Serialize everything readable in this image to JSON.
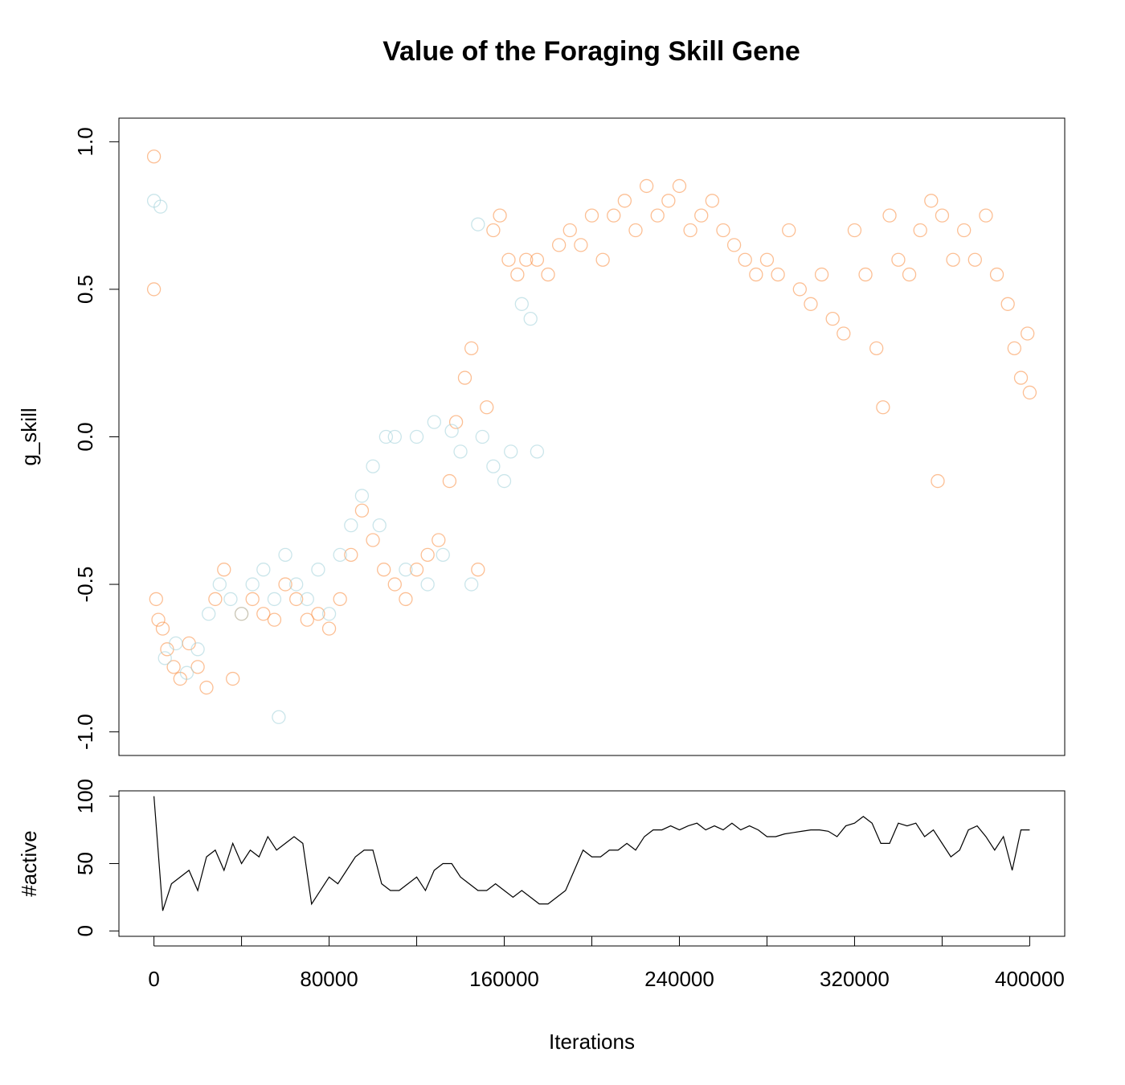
{
  "chart_data": [
    {
      "type": "scatter",
      "title": "Value of the Foraging Skill Gene",
      "ylabel": "g_skill",
      "xlim": [
        -16000,
        416000
      ],
      "ylim": [
        -1.08,
        1.08
      ],
      "yticks": [
        {
          "value": -1,
          "label": "-1.0"
        },
        {
          "value": -0.5,
          "label": "-0.5"
        },
        {
          "value": 0,
          "label": "0.0"
        },
        {
          "value": 0.5,
          "label": "0.5"
        },
        {
          "value": 1,
          "label": "1.0"
        }
      ],
      "series": [
        {
          "color": "#f98b3c",
          "x": [
            0,
            0,
            1000,
            2000,
            4000,
            6000,
            9000,
            12000,
            16000,
            20000,
            24000,
            28000,
            32000,
            36000,
            40000,
            45000,
            50000,
            55000,
            60000,
            65000,
            70000,
            75000,
            80000,
            85000,
            90000,
            95000,
            100000,
            105000,
            110000,
            115000,
            120000,
            125000,
            130000,
            135000,
            138000,
            142000,
            145000,
            148000,
            152000,
            155000,
            158000,
            162000,
            166000,
            170000,
            175000,
            180000,
            185000,
            190000,
            195000,
            200000,
            205000,
            210000,
            215000,
            220000,
            225000,
            230000,
            235000,
            240000,
            245000,
            250000,
            255000,
            260000,
            265000,
            270000,
            275000,
            280000,
            285000,
            290000,
            295000,
            300000,
            305000,
            310000,
            315000,
            320000,
            325000,
            330000,
            333000,
            336000,
            340000,
            345000,
            350000,
            355000,
            358000,
            360000,
            365000,
            370000,
            375000,
            380000,
            385000,
            390000,
            393000,
            396000,
            399000,
            400000
          ],
          "values": [
            0.95,
            0.5,
            -0.55,
            -0.62,
            -0.65,
            -0.72,
            -0.78,
            -0.82,
            -0.7,
            -0.78,
            -0.85,
            -0.55,
            -0.45,
            -0.82,
            -0.6,
            -0.55,
            -0.6,
            -0.62,
            -0.5,
            -0.55,
            -0.62,
            -0.6,
            -0.65,
            -0.55,
            -0.4,
            -0.25,
            -0.35,
            -0.45,
            -0.5,
            -0.55,
            -0.45,
            -0.4,
            -0.35,
            -0.15,
            0.05,
            0.2,
            0.3,
            -0.45,
            0.1,
            0.7,
            0.75,
            0.6,
            0.55,
            0.6,
            0.6,
            0.55,
            0.65,
            0.7,
            0.65,
            0.75,
            0.6,
            0.75,
            0.8,
            0.7,
            0.85,
            0.75,
            0.8,
            0.85,
            0.7,
            0.75,
            0.8,
            0.7,
            0.65,
            0.6,
            0.55,
            0.6,
            0.55,
            0.7,
            0.5,
            0.45,
            0.55,
            0.4,
            0.35,
            0.7,
            0.55,
            0.3,
            0.1,
            0.75,
            0.6,
            0.55,
            0.7,
            0.8,
            -0.15,
            0.75,
            0.6,
            0.7,
            0.6,
            0.75,
            0.55,
            0.45,
            0.3,
            0.2,
            0.35,
            0.15
          ]
        },
        {
          "color": "#9fd0d8",
          "x": [
            0,
            3000,
            5000,
            10000,
            15000,
            20000,
            25000,
            30000,
            35000,
            40000,
            45000,
            50000,
            55000,
            57000,
            60000,
            65000,
            70000,
            75000,
            80000,
            85000,
            90000,
            95000,
            100000,
            103000,
            106000,
            110000,
            115000,
            120000,
            125000,
            128000,
            132000,
            136000,
            140000,
            145000,
            148000,
            150000,
            155000,
            160000,
            163000,
            168000,
            172000,
            175000
          ],
          "values": [
            0.8,
            0.78,
            -0.75,
            -0.7,
            -0.8,
            -0.72,
            -0.6,
            -0.5,
            -0.55,
            -0.6,
            -0.5,
            -0.45,
            -0.55,
            -0.95,
            -0.4,
            -0.5,
            -0.55,
            -0.45,
            -0.6,
            -0.4,
            -0.3,
            -0.2,
            -0.1,
            -0.3,
            0,
            0,
            -0.45,
            0,
            -0.5,
            0.05,
            -0.4,
            0.02,
            -0.05,
            -0.5,
            0.72,
            0,
            -0.1,
            -0.15,
            -0.05,
            0.45,
            0.4,
            -0.05
          ]
        }
      ]
    },
    {
      "type": "line",
      "ylabel": "#active",
      "xlabel": "Iterations",
      "xlim": [
        -16000,
        416000
      ],
      "ylim": [
        -4,
        104
      ],
      "xticks": [
        0,
        80000,
        160000,
        240000,
        320000,
        400000
      ],
      "xminorticks": [
        40000,
        120000,
        200000,
        280000,
        360000
      ],
      "yticks": [
        0,
        50,
        100
      ],
      "color": "#000000",
      "x": [
        0,
        4000,
        8000,
        12000,
        16000,
        20000,
        24000,
        28000,
        32000,
        36000,
        40000,
        44000,
        48000,
        52000,
        56000,
        60000,
        64000,
        68000,
        72000,
        76000,
        80000,
        84000,
        88000,
        92000,
        96000,
        100000,
        104000,
        108000,
        112000,
        116000,
        120000,
        124000,
        128000,
        132000,
        136000,
        140000,
        144000,
        148000,
        152000,
        156000,
        160000,
        164000,
        168000,
        172000,
        176000,
        180000,
        184000,
        188000,
        192000,
        196000,
        200000,
        204000,
        208000,
        212000,
        216000,
        220000,
        224000,
        228000,
        232000,
        236000,
        240000,
        244000,
        248000,
        252000,
        256000,
        260000,
        264000,
        268000,
        272000,
        276000,
        280000,
        284000,
        288000,
        292000,
        296000,
        300000,
        304000,
        308000,
        312000,
        316000,
        320000,
        324000,
        328000,
        332000,
        336000,
        340000,
        344000,
        348000,
        352000,
        356000,
        360000,
        364000,
        368000,
        372000,
        376000,
        380000,
        384000,
        388000,
        392000,
        396000,
        400000
      ],
      "values": [
        100,
        15,
        35,
        40,
        45,
        30,
        55,
        60,
        45,
        65,
        50,
        60,
        55,
        70,
        60,
        65,
        70,
        65,
        20,
        30,
        40,
        35,
        45,
        55,
        60,
        60,
        35,
        30,
        30,
        35,
        40,
        30,
        45,
        50,
        50,
        40,
        35,
        30,
        30,
        35,
        30,
        25,
        30,
        25,
        20,
        20,
        25,
        30,
        45,
        60,
        55,
        55,
        60,
        60,
        65,
        60,
        70,
        75,
        75,
        78,
        75,
        78,
        80,
        75,
        78,
        75,
        80,
        75,
        78,
        75,
        70,
        70,
        72,
        73,
        74,
        75,
        75,
        74,
        70,
        78,
        80,
        85,
        80,
        65,
        65,
        80,
        78,
        80,
        70,
        75,
        65,
        55,
        60,
        75,
        78,
        70,
        60,
        70,
        45,
        75,
        75
      ]
    }
  ]
}
